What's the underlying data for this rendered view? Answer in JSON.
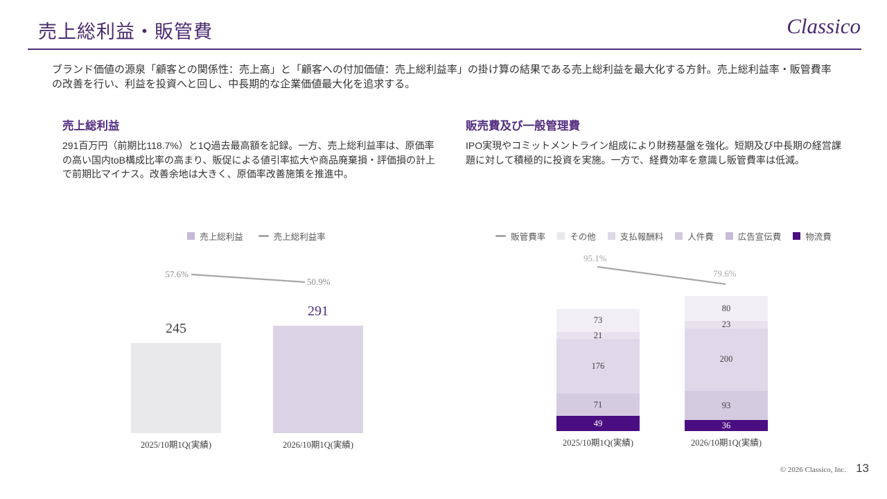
{
  "slide": {
    "title": "売上総利益・販管費",
    "logo": "Classico",
    "intro": "ブランド価値の源泉「顧客との関係性：売上高」と「顧客への付加価値：売上総利益率」の掛け算の結果である売上総利益を最大化する方針。売上総利益率・販管費率の改善を行い、利益を投資へと回し、中長期的な企業価値最大化を追求する。",
    "footer": {
      "copyright": "© 2026 Classico, Inc.",
      "page": "13"
    }
  },
  "sections": {
    "left": {
      "heading": "売上総利益",
      "body": "291百万円（前期比118.7%）と1Q過去最高額を記録。一方、売上総利益率は、原価率の高い国内toB構成比率の高まり、販促による値引率拡大や商品廃棄損・評価損の計上で前期比マイナス。改善余地は大きく、原価率改善施策を推進中。"
    },
    "right": {
      "heading": "販売費及び一般管理費",
      "body": "IPO実現やコミットメントライン組成により財務基盤を強化。短期及び中長期の経営課題に対して積極的に投資を実施。一方で、経費効率を意識し販管費率は低減。"
    }
  },
  "chart_data": [
    {
      "type": "bar",
      "name": "売上総利益",
      "categories": [
        "2025/10期1Q(実績)",
        "2026/10期1Q(実績)"
      ],
      "series": [
        {
          "name": "売上総利益",
          "values": [
            245,
            291
          ],
          "colors": [
            "#e9e8ea",
            "#dcd3e6"
          ]
        }
      ],
      "line": {
        "name": "売上総利益率",
        "values": [
          57.6,
          50.9
        ],
        "unit": "%",
        "color": "#a6a6a6",
        "label_color": "#8c8c8c"
      },
      "total_label_colors": [
        "#404040",
        "#4f2d7f"
      ],
      "legend": [
        {
          "label": "売上総利益",
          "marker": "square",
          "color": "#c5b9d5"
        },
        {
          "label": "売上総利益率",
          "marker": "line",
          "color": "#a6a6a6"
        }
      ],
      "legend_position": "top",
      "grid": false
    },
    {
      "type": "stacked-bar",
      "name": "販売費及び一般管理費",
      "categories": [
        "2025/10期1Q(実績)",
        "2026/10期1Q(実績)"
      ],
      "series": [
        {
          "name": "物流費",
          "values": [
            49,
            36
          ],
          "color": "#4b0e82",
          "label_color": "#ffffff"
        },
        {
          "name": "広告宣伝費",
          "values": [
            71,
            93
          ],
          "color": "#d5cbe1"
        },
        {
          "name": "人件費",
          "values": [
            176,
            200
          ],
          "color": "#dfd8e9"
        },
        {
          "name": "支払報酬料",
          "values": [
            21,
            23
          ],
          "color": "#e8e2ef"
        },
        {
          "name": "その他",
          "values": [
            73,
            80
          ],
          "color": "#f1eef5"
        }
      ],
      "line": {
        "name": "販管費率",
        "values": [
          95.1,
          79.6
        ],
        "unit": "%",
        "color": "#a6a6a6",
        "label_color": "#a6a6a6"
      },
      "legend": [
        {
          "label": "販管費率",
          "marker": "line",
          "color": "#a6a6a6"
        },
        {
          "label": "その他",
          "marker": "square",
          "color": "#eae7ee"
        },
        {
          "label": "支払報酬料",
          "marker": "square",
          "color": "#ddd7e6"
        },
        {
          "label": "人件費",
          "marker": "square",
          "color": "#d2cade"
        },
        {
          "label": "広告宣伝費",
          "marker": "square",
          "color": "#c7bbd7"
        },
        {
          "label": "物流費",
          "marker": "square",
          "color": "#4b0e82"
        }
      ],
      "legend_position": "top",
      "grid": false
    }
  ]
}
